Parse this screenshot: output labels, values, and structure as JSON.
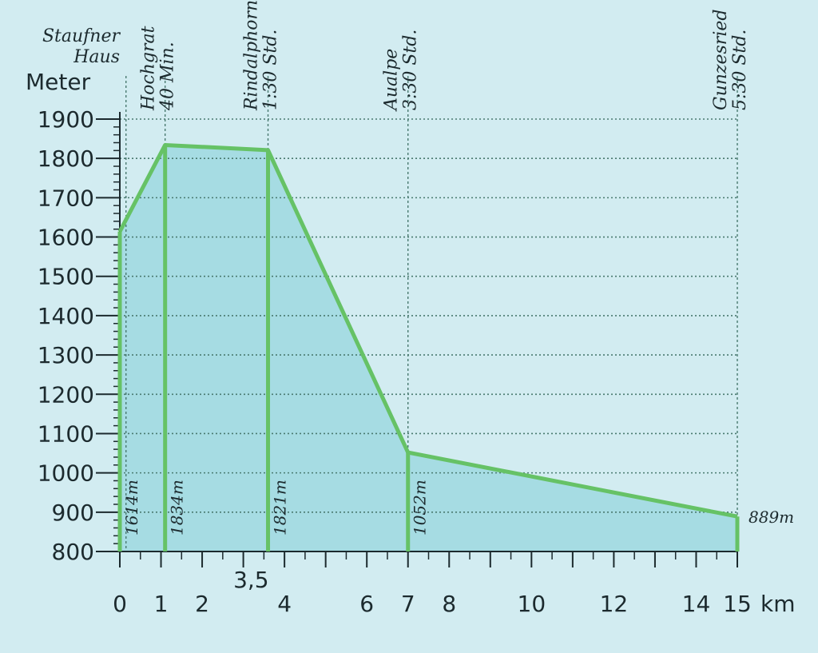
{
  "chart_data": {
    "type": "area",
    "ylabel": "Meter",
    "xunit": "km",
    "xlim": [
      0,
      15
    ],
    "ylim": [
      800,
      1900
    ],
    "y_ticks": [
      800,
      900,
      1000,
      1100,
      1200,
      1300,
      1400,
      1500,
      1600,
      1700,
      1800,
      1900
    ],
    "x_ticks": [
      {
        "value": 0,
        "label": "0"
      },
      {
        "value": 1,
        "label": "1"
      },
      {
        "value": 2,
        "label": "2"
      },
      {
        "value": 3.5,
        "label": "3,5"
      },
      {
        "value": 4,
        "label": "4"
      },
      {
        "value": 6,
        "label": "6"
      },
      {
        "value": 7,
        "label": "7"
      },
      {
        "value": 8,
        "label": "8"
      },
      {
        "value": 10,
        "label": "10"
      },
      {
        "value": 12,
        "label": "12"
      },
      {
        "value": 14,
        "label": "14"
      },
      {
        "value": 15,
        "label": "15"
      }
    ],
    "points": [
      {
        "x": 0,
        "y": 1614,
        "elevation_label": "1614m"
      },
      {
        "x": 1.1,
        "y": 1834,
        "elevation_label": "1834m"
      },
      {
        "x": 3.6,
        "y": 1821,
        "elevation_label": "1821m"
      },
      {
        "x": 7,
        "y": 1052,
        "elevation_label": "1052m"
      },
      {
        "x": 15,
        "y": 889,
        "elevation_label": "889m"
      }
    ],
    "waypoints": [
      {
        "x": 0.15,
        "name": "Staufner\nHaus",
        "time": ""
      },
      {
        "x": 1.1,
        "name": "Hochgrat",
        "time": "40 Min."
      },
      {
        "x": 3.6,
        "name": "Rindalphorn",
        "time": "1:30 Std."
      },
      {
        "x": 7,
        "name": "Aualpe",
        "time": "3:30 Std."
      },
      {
        "x": 15,
        "name": "Gunzesried",
        "time": "5:30 Std."
      }
    ],
    "grid": true,
    "colors": {
      "line": "#66c266",
      "fill": "#9fd9e1",
      "grid": "#4a7a70",
      "axis": "#1c2a2e"
    }
  }
}
